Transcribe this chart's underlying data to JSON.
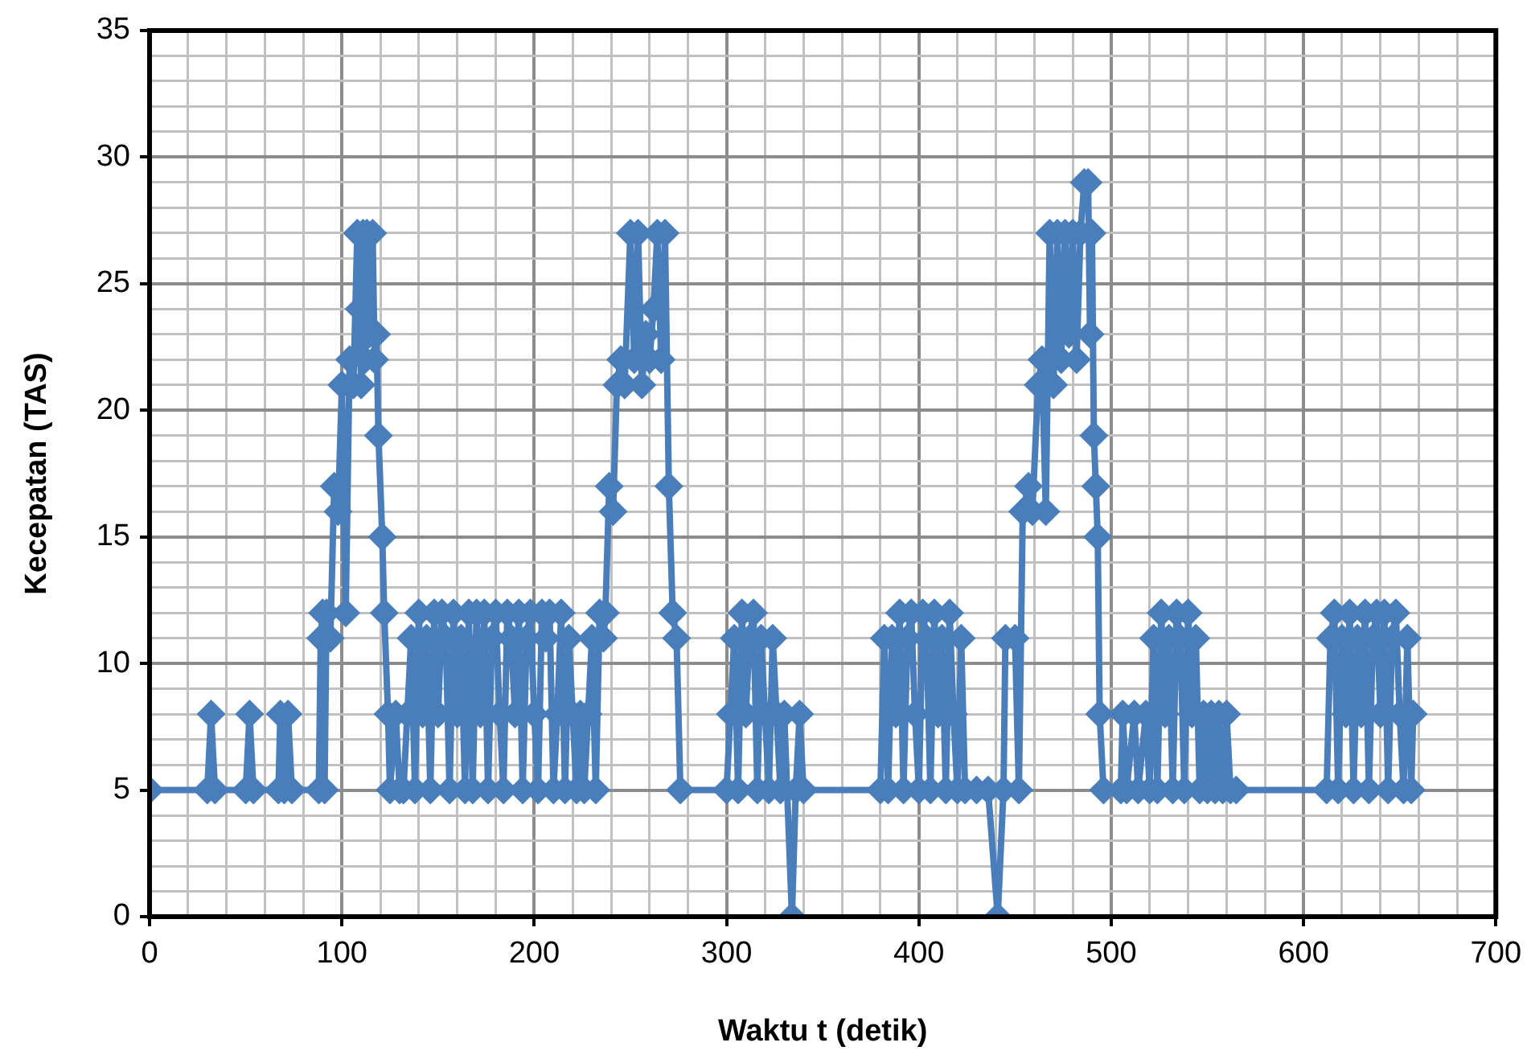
{
  "chart_data": {
    "type": "line",
    "xlabel": "Waktu t (detik)",
    "ylabel": "Kecepatan (TAS)",
    "xlim": [
      0,
      700
    ],
    "xticks": [
      0,
      {
        "value": 20,
        "label": null
      },
      {
        "value": 40,
        "label": null
      },
      {
        "value": 60,
        "label": null
      },
      {
        "value": 80,
        "label": null
      },
      100,
      {
        "value": 120,
        "label": null
      },
      {
        "value": 140,
        "label": null
      },
      {
        "value": 160,
        "label": null
      },
      {
        "value": 180,
        "label": null
      },
      200,
      {
        "value": 220,
        "label": null
      },
      {
        "value": 240,
        "label": null
      },
      {
        "value": 260,
        "label": null
      },
      {
        "value": 280,
        "label": null
      },
      300,
      {
        "value": 320,
        "label": null
      },
      {
        "value": 340,
        "label": null
      },
      {
        "value": 360,
        "label": null
      },
      {
        "value": 380,
        "label": null
      },
      400,
      {
        "value": 420,
        "label": null
      },
      {
        "value": 440,
        "label": null
      },
      {
        "value": 460,
        "label": null
      },
      {
        "value": 480,
        "label": null
      },
      500,
      {
        "value": 520,
        "label": null
      },
      {
        "value": 540,
        "label": null
      },
      {
        "value": 560,
        "label": null
      },
      {
        "value": 580,
        "label": null
      },
      600,
      {
        "value": 620,
        "label": null
      },
      {
        "value": 640,
        "label": null
      },
      {
        "value": 660,
        "label": null
      },
      {
        "value": 680,
        "label": null
      },
      700
    ],
    "ylim": [
      0,
      35
    ],
    "yticks": [
      0,
      {
        "value": 1,
        "label": null
      },
      {
        "value": 2,
        "label": null
      },
      {
        "value": 3,
        "label": null
      },
      {
        "value": 4,
        "label": null
      },
      5,
      {
        "value": 6,
        "label": null
      },
      {
        "value": 7,
        "label": null
      },
      {
        "value": 8,
        "label": null
      },
      {
        "value": 9,
        "label": null
      },
      10,
      {
        "value": 11,
        "label": null
      },
      {
        "value": 12,
        "label": null
      },
      {
        "value": 13,
        "label": null
      },
      {
        "value": 14,
        "label": null
      },
      15,
      {
        "value": 16,
        "label": null
      },
      {
        "value": 17,
        "label": null
      },
      {
        "value": 18,
        "label": null
      },
      {
        "value": 19,
        "label": null
      },
      20,
      {
        "value": 21,
        "label": null
      },
      {
        "value": 22,
        "label": null
      },
      {
        "value": 23,
        "label": null
      },
      {
        "value": 24,
        "label": null
      },
      25,
      {
        "value": 26,
        "label": null
      },
      {
        "value": 27,
        "label": null
      },
      {
        "value": 28,
        "label": null
      },
      {
        "value": 29,
        "label": null
      },
      30,
      {
        "value": 31,
        "label": null
      },
      {
        "value": 32,
        "label": null
      },
      {
        "value": 33,
        "label": null
      },
      {
        "value": 34,
        "label": null
      },
      35
    ],
    "grid": true,
    "legend": false,
    "marker": "diamond",
    "line_style": "solid",
    "series": [
      {
        "color": "#4a7ebb",
        "x": [
          0,
          30,
          32,
          34,
          50,
          52,
          54,
          67,
          68,
          70,
          72,
          74,
          88,
          89,
          90,
          91,
          92,
          94,
          96,
          98,
          100,
          102,
          104,
          106,
          108,
          109,
          110,
          111,
          112,
          113,
          114,
          116,
          117,
          118,
          119,
          121,
          122,
          124,
          125,
          128,
          130,
          132,
          134,
          136,
          138,
          140,
          142,
          144,
          146,
          148,
          150,
          152,
          154,
          156,
          158,
          160,
          162,
          164,
          166,
          168,
          170,
          172,
          174,
          176,
          178,
          180,
          182,
          184,
          186,
          188,
          190,
          192,
          194,
          196,
          198,
          200,
          202,
          204,
          206,
          208,
          210,
          212,
          214,
          216,
          218,
          220,
          222,
          224,
          226,
          228,
          230,
          232,
          234,
          236,
          237,
          239,
          241,
          243,
          245,
          247,
          250,
          252,
          254,
          256,
          258,
          260,
          262,
          264,
          266,
          268,
          270,
          272,
          274,
          276,
          300,
          302,
          304,
          306,
          308,
          310,
          312,
          314,
          316,
          318,
          320,
          322,
          324,
          326,
          328,
          330,
          334,
          336,
          338,
          340,
          380,
          382,
          384,
          386,
          388,
          390,
          392,
          394,
          396,
          398,
          400,
          402,
          404,
          406,
          408,
          410,
          412,
          414,
          416,
          418,
          420,
          422,
          424,
          430,
          436,
          441,
          444,
          445,
          450,
          452,
          454,
          457,
          459,
          462,
          464,
          466,
          468,
          470,
          472,
          474,
          476,
          478,
          480,
          482,
          484,
          486,
          488,
          489,
          490,
          491,
          492,
          493,
          494,
          496,
          505,
          506,
          508,
          512,
          514,
          518,
          520,
          522,
          524,
          526,
          528,
          530,
          532,
          534,
          536,
          538,
          540,
          542,
          544,
          546,
          548,
          550,
          552,
          554,
          556,
          558,
          560,
          562,
          565,
          612,
          614,
          616,
          618,
          620,
          622,
          624,
          626,
          628,
          630,
          632,
          634,
          636,
          638,
          640,
          642,
          644,
          646,
          648,
          650,
          652,
          654,
          656,
          657
        ],
        "values": [
          5,
          5,
          8,
          5,
          5,
          8,
          5,
          5,
          8,
          5,
          8,
          5,
          5,
          11,
          12,
          5,
          12,
          11,
          17,
          16,
          21,
          12,
          22,
          21,
          27,
          24,
          21,
          27,
          22,
          27,
          23,
          27,
          22,
          23,
          19,
          15,
          12,
          8,
          5,
          8,
          5,
          5,
          8,
          11,
          5,
          12,
          8,
          11,
          5,
          12,
          8,
          12,
          11,
          5,
          12,
          8,
          11,
          5,
          12,
          5,
          12,
          8,
          12,
          5,
          11,
          12,
          8,
          5,
          12,
          11,
          8,
          12,
          5,
          11,
          12,
          8,
          5,
          12,
          11,
          12,
          5,
          8,
          12,
          5,
          11,
          8,
          5,
          8,
          5,
          8,
          11,
          5,
          12,
          11,
          12,
          17,
          16,
          21,
          22,
          21,
          27,
          22,
          27,
          21,
          23,
          22,
          24,
          27,
          22,
          27,
          17,
          12,
          11,
          5,
          5,
          8,
          11,
          5,
          12,
          8,
          11,
          12,
          5,
          11,
          8,
          5,
          11,
          8,
          5,
          8,
          0,
          5,
          8,
          5,
          5,
          11,
          5,
          11,
          8,
          12,
          5,
          11,
          12,
          8,
          5,
          12,
          11,
          5,
          12,
          8,
          11,
          5,
          12,
          8,
          5,
          11,
          5,
          5,
          5,
          0,
          5,
          11,
          11,
          5,
          16,
          17,
          16,
          21,
          22,
          16,
          27,
          21,
          27,
          22,
          27,
          23,
          27,
          22,
          27,
          29,
          29,
          23,
          27,
          19,
          17,
          15,
          8,
          5,
          5,
          8,
          5,
          8,
          5,
          8,
          5,
          11,
          5,
          12,
          8,
          11,
          5,
          12,
          11,
          5,
          12,
          8,
          11,
          5,
          8,
          5,
          8,
          5,
          8,
          5,
          8,
          5,
          5,
          5,
          11,
          12,
          5,
          11,
          8,
          12,
          5,
          11,
          8,
          12,
          5,
          11,
          12,
          8,
          12,
          5,
          11,
          12,
          8,
          5,
          11,
          5,
          8
        ]
      }
    ]
  }
}
